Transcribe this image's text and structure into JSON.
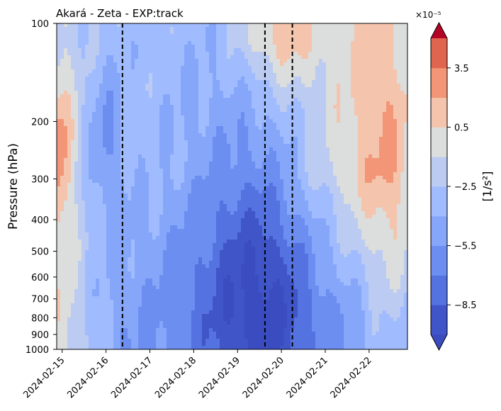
{
  "chart_data": {
    "type": "heatmap",
    "plot_kind": "filled-contour (Hovmöller: time vs pressure)",
    "title": "Akará - Zeta - EXP:track",
    "xlabel": "",
    "ylabel": "Pressure (hPa)",
    "y_scale": "log",
    "y_inverted": true,
    "ylim": [
      1000,
      100
    ],
    "xlim": [
      "2024-02-14T21:00",
      "2024-02-22T21:00"
    ],
    "x_ticks": [
      "2024-02-15",
      "2024-02-16",
      "2024-02-17",
      "2024-02-18",
      "2024-02-19",
      "2024-02-20",
      "2024-02-21",
      "2024-02-22"
    ],
    "y_ticks": [
      100,
      200,
      300,
      400,
      500,
      600,
      700,
      800,
      900,
      1000
    ],
    "vertical_lines": [
      "2024-02-16T09:00",
      "2024-02-19T15:00",
      "2024-02-20T06:00"
    ],
    "colorbar": {
      "label": "[1/s²]",
      "scale_text": "×10⁻⁵",
      "extend": "both",
      "tick_values": [
        -8.5,
        -5.5,
        -2.5,
        0.5,
        3.5
      ],
      "tick_labels": [
        "−8.5",
        "−5.5",
        "−2.5",
        "0.5",
        "3.5"
      ],
      "levels_e5": [
        -10,
        -8.5,
        -7,
        -5.5,
        -4,
        -2.5,
        -1,
        0.5,
        2,
        3.5,
        5
      ],
      "colormap": "coolwarm",
      "colors": [
        "#4055c8",
        "#5472e0",
        "#6b8ef0",
        "#86a6fa",
        "#a0bcfe",
        "#bbcbf1",
        "#dcdddd",
        "#f4c4ac",
        "#f39677",
        "#e0654f",
        "#c32e31"
      ],
      "under_color": "#3b4cc0",
      "over_color": "#b40426",
      "grid": false
    },
    "field_description": "Cyclonic (negative) relative vorticity strongest (≈ -1.0e-4 s⁻¹) in the lower-mid troposphere between 2024-02-18 and 2024-02-20; weak positive values near 2024-02-15 at 200-350 hPa and in the upper levels after 2024-02-19."
  }
}
